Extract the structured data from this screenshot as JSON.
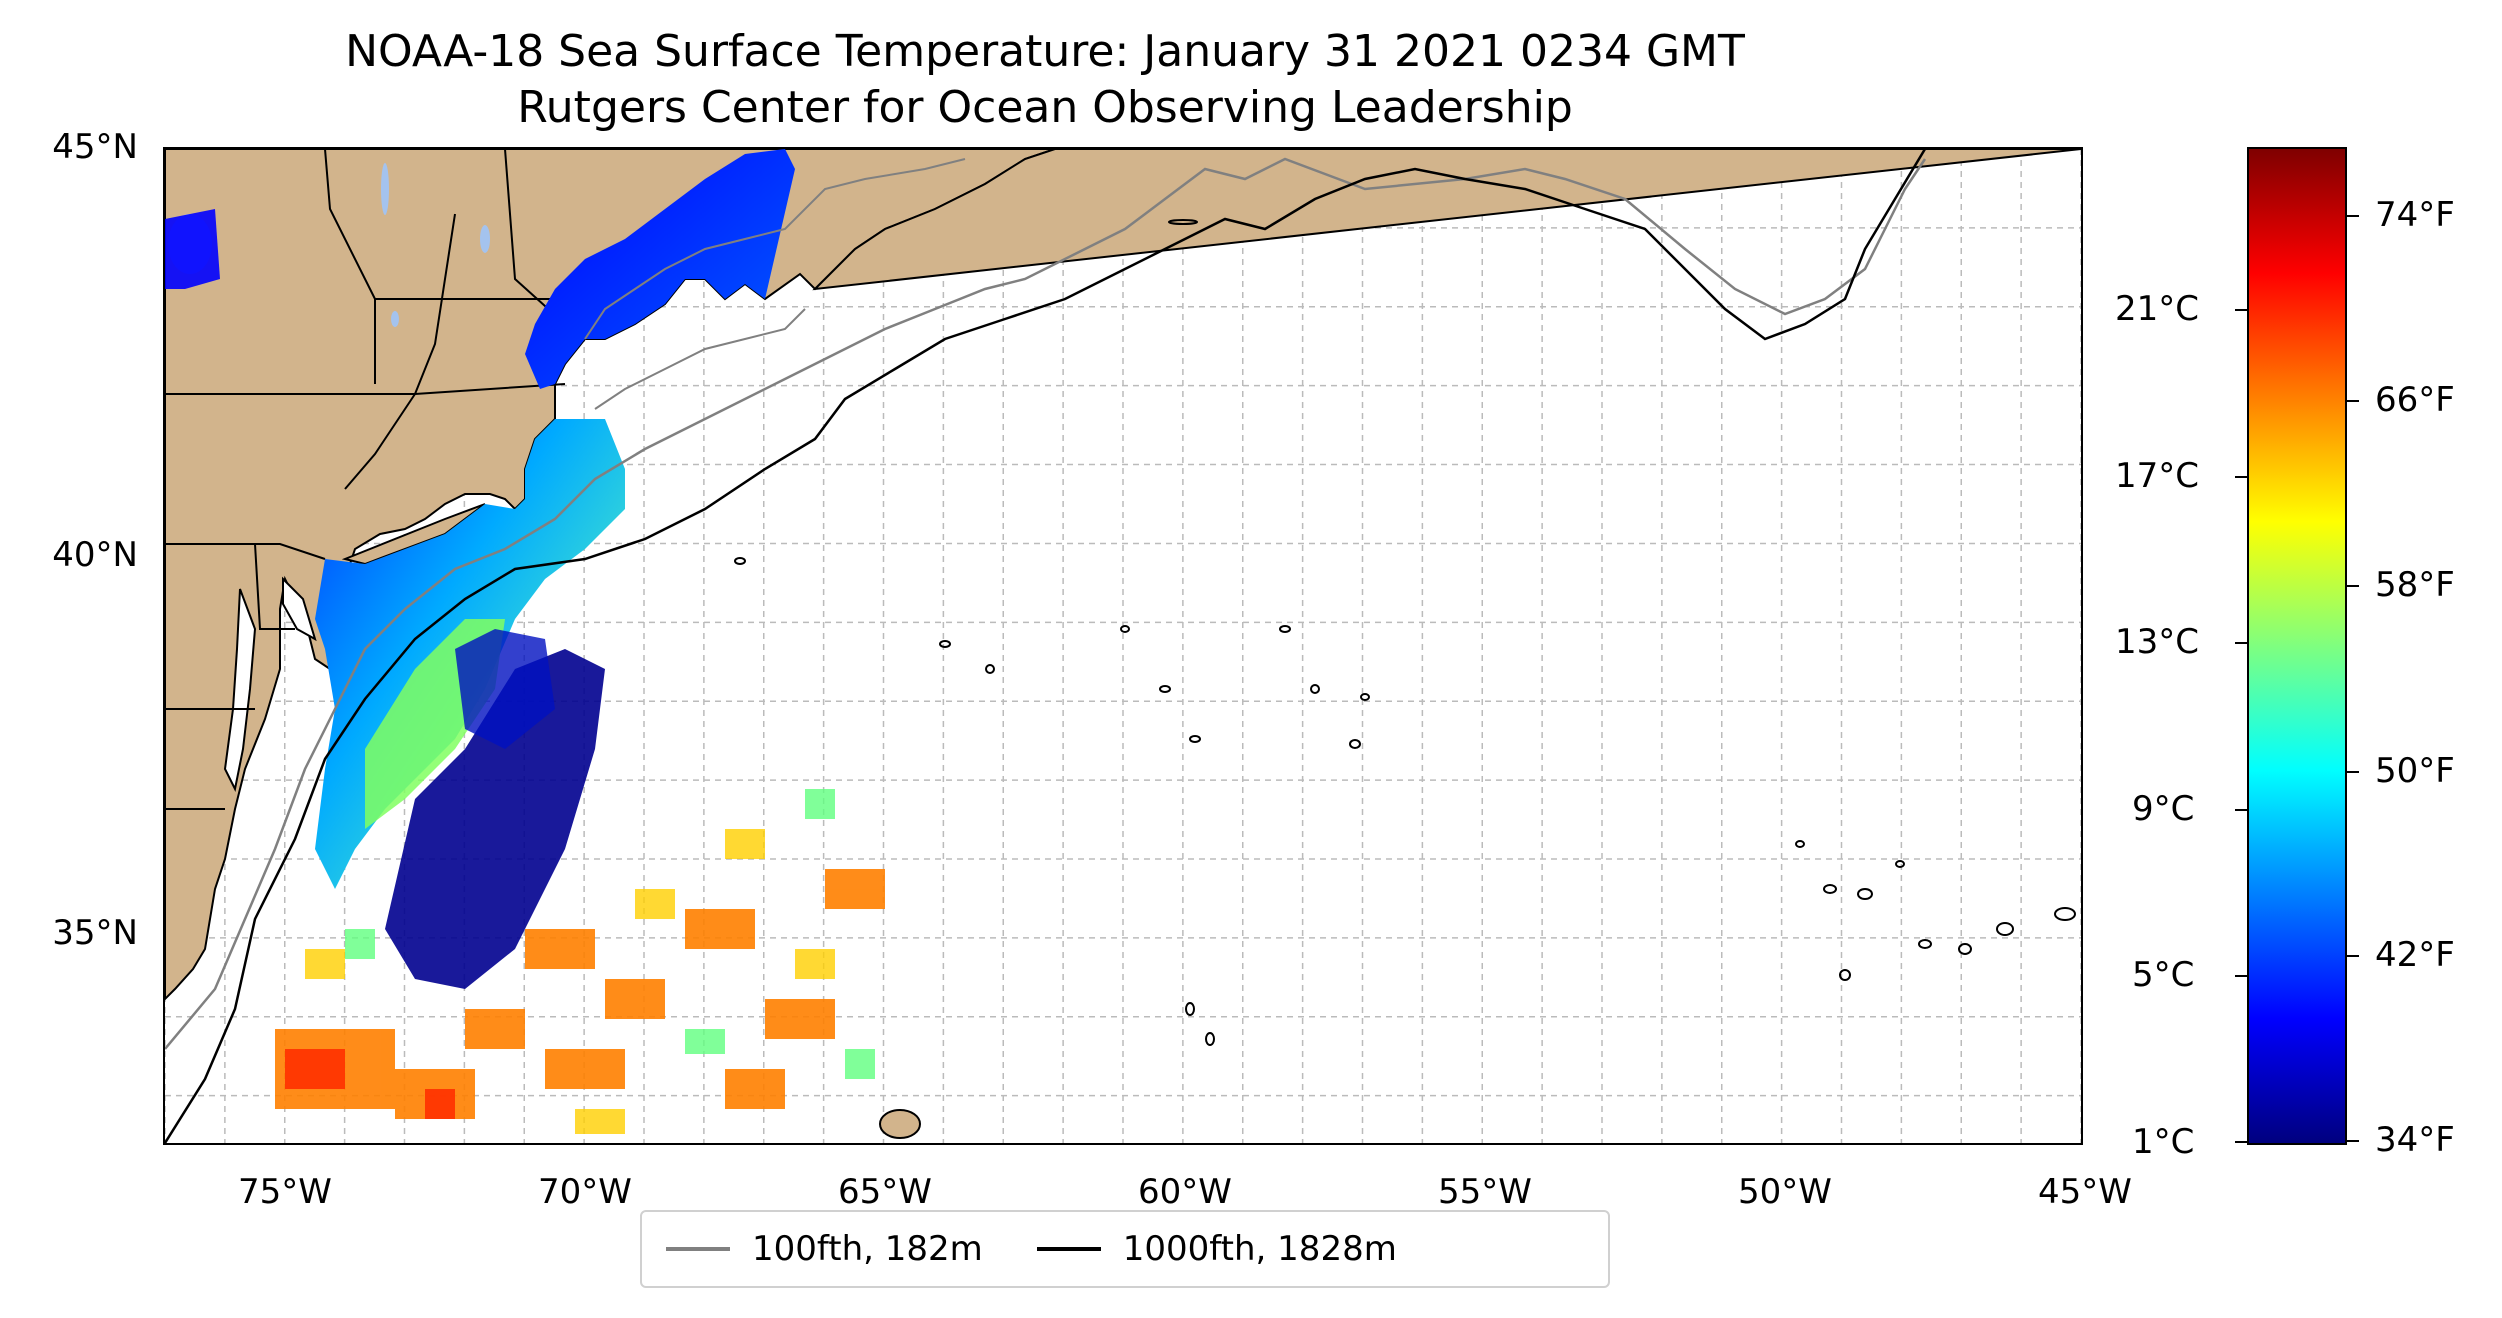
{
  "title": {
    "line1": "NOAA-18 Sea Surface Temperature: January 31 2021 0234 GMT",
    "line2": "Rutgers Center for Ocean Observing Leadership"
  },
  "map": {
    "lat_range": [
      32.4,
      45
    ],
    "lon_range": [
      -77,
      -45
    ],
    "lat_labels": [
      "45°N",
      "40°N",
      "35°N"
    ],
    "lon_labels": [
      "75°W",
      "70°W",
      "65°W",
      "60°W",
      "55°W",
      "50°W",
      "45°W"
    ],
    "land_color": "#d2b48c",
    "lake_color": "#a4c3ee",
    "grid": true
  },
  "legend": {
    "items": [
      {
        "label": "100fth, 182m",
        "color": "#808080"
      },
      {
        "label": "1000fth, 1828m",
        "color": "#000000"
      }
    ]
  },
  "colorbar": {
    "celsius_labels": [
      "21°C",
      "17°C",
      "13°C",
      "9°C",
      "5°C",
      "1°C"
    ],
    "fahrenheit_labels": [
      "74°F",
      "66°F",
      "58°F",
      "50°F",
      "42°F",
      "34°F"
    ],
    "colormap": "jet",
    "colors": [
      "#00007f",
      "#0000ff",
      "#007fff",
      "#00ffff",
      "#7fff7f",
      "#ffff00",
      "#ff7f00",
      "#ff0000",
      "#7f0000"
    ]
  }
}
